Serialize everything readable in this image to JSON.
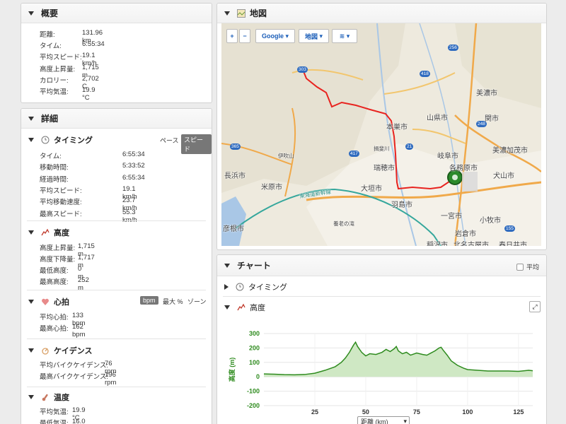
{
  "summary": {
    "title": "概要",
    "rows": [
      {
        "label": "距離:",
        "value": "131.96 km"
      },
      {
        "label": "タイム:",
        "value": "6:55:34"
      },
      {
        "label": "平均スピード:",
        "value": "19.1 km/h"
      },
      {
        "label": "高度上昇量:",
        "value": "1,715 m"
      },
      {
        "label": "カロリー:",
        "value": "2,702 C"
      },
      {
        "label": "平均気温:",
        "value": "19.9 °C"
      }
    ]
  },
  "details": {
    "title": "詳細",
    "timing": {
      "title": "タイミング",
      "pace_label": "ペース",
      "speed_label": "スピード",
      "rows": [
        {
          "label": "タイム:",
          "value": "6:55:34"
        },
        {
          "label": "移動時間:",
          "value": "5:33:52"
        },
        {
          "label": "経過時間:",
          "value": "6:55:34"
        },
        {
          "label": "平均スピード:",
          "value": "19.1 km/h"
        },
        {
          "label": "平均移動速度:",
          "value": "23.7 km/h"
        },
        {
          "label": "最高スピード:",
          "value": "55.3 km/h"
        }
      ]
    },
    "elevation": {
      "title": "高度",
      "rows": [
        {
          "label": "高度上昇量:",
          "value": "1,715 m"
        },
        {
          "label": "高度下降量:",
          "value": "1,717 m"
        },
        {
          "label": "最低高度:",
          "value": "0 m"
        },
        {
          "label": "最高高度:",
          "value": "252 m"
        }
      ]
    },
    "heart_rate": {
      "title": "心拍",
      "bpm_label": "bpm",
      "max_pct_label": "最大 %",
      "zone_label": "ゾーン",
      "rows": [
        {
          "label": "平均心拍:",
          "value": "133 bpm"
        },
        {
          "label": "最高心拍:",
          "value": "162 bpm"
        }
      ]
    },
    "cadence": {
      "title": "ケイデンス",
      "rows": [
        {
          "label": "平均バイクケイデンス:",
          "value": "76 rpm"
        },
        {
          "label": "最高バイクケイデンス:",
          "value": "196 rpm"
        }
      ]
    },
    "temperature": {
      "title": "温度",
      "rows": [
        {
          "label": "平均気温:",
          "value": "19.9 °C"
        },
        {
          "label": "最低気温:",
          "value": "16.0 °C"
        }
      ]
    }
  },
  "map": {
    "title": "地図",
    "zoom_in": "+",
    "zoom_out": "−",
    "provider": "Google",
    "map_type": "地図",
    "labels": [
      {
        "text": "美濃市"
      },
      {
        "text": "山県市"
      },
      {
        "text": "関市"
      },
      {
        "text": "本巣市"
      },
      {
        "text": "美濃加茂市"
      },
      {
        "text": "岐阜市"
      },
      {
        "text": "各務原市"
      },
      {
        "text": "瑞穂市"
      },
      {
        "text": "長浜市"
      },
      {
        "text": "米原市"
      },
      {
        "text": "大垣市"
      },
      {
        "text": "犬山市"
      },
      {
        "text": "羽島市"
      },
      {
        "text": "一宮市"
      },
      {
        "text": "小牧市"
      },
      {
        "text": "岩倉市"
      },
      {
        "text": "稲沢市"
      },
      {
        "text": "北名古屋市"
      },
      {
        "text": "春日井市"
      },
      {
        "text": "彦根市"
      },
      {
        "text": "東海道新幹線"
      },
      {
        "text": "揖斐川"
      },
      {
        "text": "伊吹山"
      },
      {
        "text": "養老の滝"
      }
    ],
    "route_shields": [
      "303",
      "418",
      "256",
      "248",
      "21",
      "417",
      "365",
      "155"
    ]
  },
  "chart_panel": {
    "title": "チャート",
    "smooth_label": "平均",
    "timing_label": "タイミング",
    "elevation_label": "高度",
    "x_select_label": "距離 (km)"
  },
  "chart_data": {
    "type": "area",
    "ylabel": "高度 (m)",
    "xlabel": "距離 (km)",
    "xlim": [
      0,
      132
    ],
    "ylim": [
      -200,
      300
    ],
    "yticks": [
      300,
      200,
      100,
      0,
      -100,
      -200
    ],
    "xticks": [
      25,
      50,
      75,
      100,
      125
    ],
    "x": [
      0,
      5,
      10,
      15,
      20,
      25,
      30,
      35,
      38,
      40,
      42,
      44,
      45,
      46,
      48,
      50,
      52,
      55,
      58,
      60,
      62,
      64,
      65,
      66,
      68,
      70,
      72,
      75,
      78,
      80,
      82,
      84,
      86,
      87,
      88,
      90,
      92,
      95,
      98,
      100,
      105,
      110,
      115,
      120,
      125,
      130,
      132
    ],
    "values": [
      20,
      18,
      15,
      14,
      16,
      25,
      45,
      70,
      100,
      130,
      170,
      220,
      240,
      210,
      170,
      145,
      160,
      155,
      170,
      190,
      175,
      195,
      210,
      180,
      160,
      170,
      150,
      165,
      155,
      150,
      165,
      180,
      200,
      205,
      185,
      150,
      110,
      80,
      60,
      50,
      45,
      40,
      40,
      40,
      38,
      45,
      42
    ],
    "colors": {
      "line": "#2e8b1e",
      "fill": "#cfe8c4"
    }
  }
}
